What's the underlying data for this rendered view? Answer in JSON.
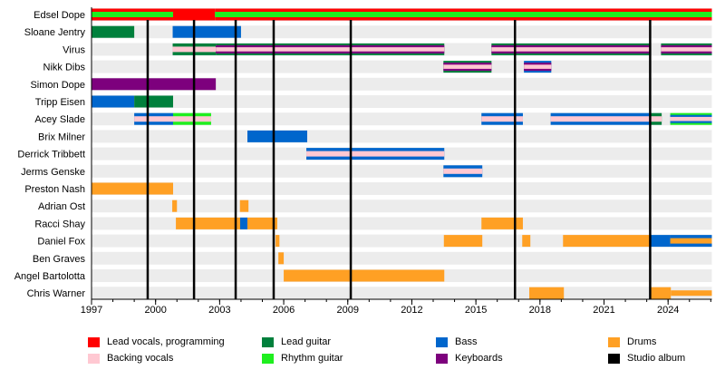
{
  "chart_data": {
    "type": "timeline",
    "xlim": [
      1997,
      2026.05
    ],
    "x_ticks": [
      1997,
      2000,
      2003,
      2006,
      2009,
      2012,
      2015,
      2018,
      2021,
      2024
    ],
    "minor_tick_interval_years": 1,
    "grid": false,
    "legend_placement": "bottom",
    "roles": [
      {
        "name": "Lead vocals, programming",
        "color": "#ff0000"
      },
      {
        "name": "Backing vocals",
        "color": "#ffc8d2"
      },
      {
        "name": "Lead guitar",
        "color": "#00803c"
      },
      {
        "name": "Rhythm guitar",
        "color": "#1fef1f"
      },
      {
        "name": "Bass",
        "color": "#0066cc"
      },
      {
        "name": "Keyboards",
        "color": "#7d007d"
      },
      {
        "name": "Drums",
        "color": "#ffa024"
      },
      {
        "name": "Studio album",
        "color": "#000000"
      }
    ],
    "studio_albums": [
      1999.63,
      2001.8,
      2003.75,
      2005.53,
      2009.14,
      2016.83,
      2023.16
    ],
    "members": [
      {
        "name": "Edsel Dope",
        "segments": [
          {
            "start": 1997,
            "end": 2000.82,
            "roles": [
              "Lead vocals, programming",
              "Rhythm guitar"
            ]
          },
          {
            "start": 2000.82,
            "end": 2002.78,
            "roles": [
              "Lead vocals, programming"
            ]
          },
          {
            "start": 2002.78,
            "end": 2026.05,
            "roles": [
              "Lead vocals, programming",
              "Rhythm guitar"
            ]
          }
        ]
      },
      {
        "name": "Sloane Jentry",
        "segments": [
          {
            "start": 1997,
            "end": 1999.0,
            "roles": [
              "Lead guitar"
            ]
          },
          {
            "start": 2000.8,
            "end": 2004.0,
            "roles": [
              "Bass"
            ]
          }
        ]
      },
      {
        "name": "Virus",
        "segments": [
          {
            "start": 2000.8,
            "end": 2002.82,
            "roles": [
              "Lead guitar",
              "Backing vocals"
            ]
          },
          {
            "start": 2002.82,
            "end": 2013.52,
            "roles": [
              "Lead guitar",
              "Keyboards",
              "Backing vocals"
            ]
          },
          {
            "start": 2015.73,
            "end": 2023.16,
            "roles": [
              "Lead guitar",
              "Keyboards",
              "Backing vocals"
            ]
          },
          {
            "start": 2023.67,
            "end": 2026.05,
            "roles": [
              "Lead guitar",
              "Keyboards",
              "Backing vocals"
            ]
          }
        ]
      },
      {
        "name": "Nikk Dibs",
        "segments": [
          {
            "start": 2013.48,
            "end": 2015.73,
            "roles": [
              "Lead guitar",
              "Keyboards",
              "Backing vocals"
            ]
          },
          {
            "start": 2017.25,
            "end": 2018.53,
            "roles": [
              "Bass",
              "Keyboards",
              "Backing vocals"
            ]
          }
        ]
      },
      {
        "name": "Simon Dope",
        "segments": [
          {
            "start": 1997,
            "end": 2002.82,
            "roles": [
              "Keyboards"
            ]
          }
        ]
      },
      {
        "name": "Tripp Eisen",
        "segments": [
          {
            "start": 1997,
            "end": 1999.0,
            "roles": [
              "Bass"
            ]
          },
          {
            "start": 1999.0,
            "end": 2000.82,
            "roles": [
              "Lead guitar"
            ]
          }
        ]
      },
      {
        "name": "Acey Slade",
        "segments": [
          {
            "start": 1999.0,
            "end": 2000.82,
            "roles": [
              "Bass",
              "Backing vocals"
            ]
          },
          {
            "start": 2000.82,
            "end": 2002.6,
            "roles": [
              "Rhythm guitar",
              "Backing vocals"
            ]
          },
          {
            "start": 2015.26,
            "end": 2017.2,
            "roles": [
              "Bass",
              "Backing vocals"
            ]
          },
          {
            "start": 2018.5,
            "end": 2023.16,
            "roles": [
              "Bass",
              "Backing vocals"
            ]
          },
          {
            "start": 2023.16,
            "end": 2023.7,
            "roles": [
              "Lead guitar",
              "Backing vocals"
            ]
          },
          {
            "start": 2024.1,
            "end": 2026.05,
            "roles": [
              "Rhythm guitar",
              "Bass",
              "Backing vocals"
            ]
          }
        ]
      },
      {
        "name": "Brix Milner",
        "segments": [
          {
            "start": 2004.3,
            "end": 2007.1,
            "roles": [
              "Bass"
            ]
          }
        ]
      },
      {
        "name": "Derrick Tribbett",
        "segments": [
          {
            "start": 2007.06,
            "end": 2013.52,
            "roles": [
              "Bass",
              "Backing vocals"
            ]
          }
        ]
      },
      {
        "name": "Jerms Genske",
        "segments": [
          {
            "start": 2013.48,
            "end": 2015.3,
            "roles": [
              "Bass",
              "Backing vocals"
            ]
          }
        ]
      },
      {
        "name": "Preston Nash",
        "segments": [
          {
            "start": 1997,
            "end": 2000.82,
            "roles": [
              "Drums"
            ]
          }
        ]
      },
      {
        "name": "Adrian Ost",
        "segments": [
          {
            "start": 2000.78,
            "end": 2001.0,
            "roles": [
              "Drums"
            ]
          },
          {
            "start": 2003.95,
            "end": 2004.35,
            "roles": [
              "Drums"
            ]
          }
        ]
      },
      {
        "name": "Racci Shay",
        "segments": [
          {
            "start": 2000.95,
            "end": 2003.96,
            "roles": [
              "Drums"
            ]
          },
          {
            "start": 2003.96,
            "end": 2004.3,
            "roles": [
              "Bass"
            ]
          },
          {
            "start": 2004.3,
            "end": 2005.7,
            "roles": [
              "Drums"
            ]
          },
          {
            "start": 2015.26,
            "end": 2017.2,
            "roles": [
              "Drums"
            ]
          }
        ]
      },
      {
        "name": "Daniel Fox",
        "segments": [
          {
            "start": 2005.62,
            "end": 2005.8,
            "roles": [
              "Drums"
            ]
          },
          {
            "start": 2013.5,
            "end": 2015.3,
            "roles": [
              "Drums"
            ]
          },
          {
            "start": 2017.17,
            "end": 2017.55,
            "roles": [
              "Drums"
            ]
          },
          {
            "start": 2019.08,
            "end": 2023.16,
            "roles": [
              "Drums"
            ]
          },
          {
            "start": 2023.16,
            "end": 2024.1,
            "roles": [
              "Bass"
            ]
          },
          {
            "start": 2024.1,
            "end": 2026.05,
            "roles": [
              "Bass",
              "Drums"
            ]
          }
        ]
      },
      {
        "name": "Ben Graves",
        "segments": [
          {
            "start": 2005.75,
            "end": 2006.0,
            "roles": [
              "Drums"
            ]
          }
        ]
      },
      {
        "name": "Angel Bartolotta",
        "segments": [
          {
            "start": 2006.0,
            "end": 2013.52,
            "roles": [
              "Drums"
            ]
          }
        ]
      },
      {
        "name": "Chris Warner",
        "segments": [
          {
            "start": 2017.5,
            "end": 2019.12,
            "roles": [
              "Drums"
            ]
          },
          {
            "start": 2023.16,
            "end": 2024.13,
            "roles": [
              "Drums"
            ]
          },
          {
            "start": 2024.13,
            "end": 2026.05,
            "roles": [
              null,
              "Drums"
            ]
          }
        ]
      }
    ]
  }
}
